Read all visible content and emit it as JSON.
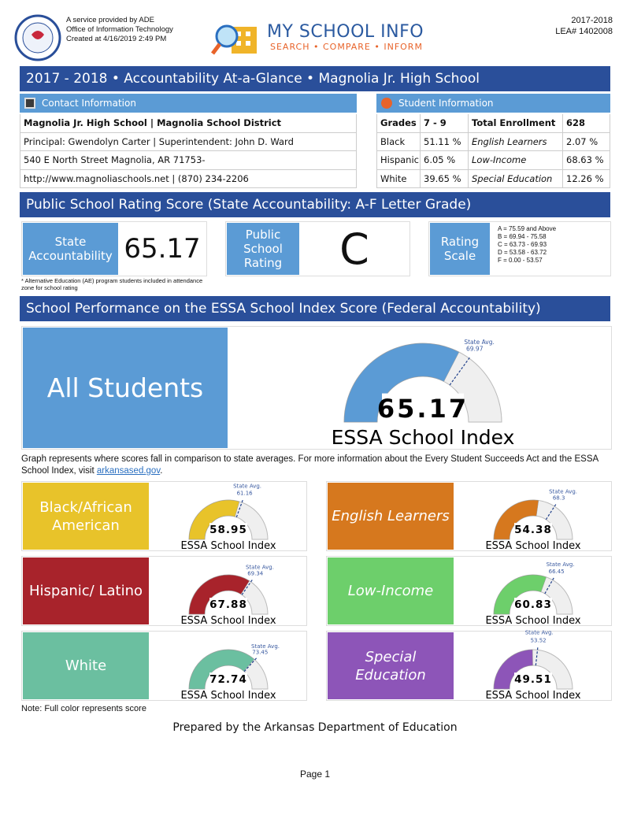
{
  "header": {
    "service_lines": [
      "A service provided by ADE",
      "Office of Information Technology",
      "Created at 4/16/2019 2:49 PM"
    ],
    "logo_title": "MY SCHOOL INFO",
    "logo_tagline": "SEARCH • COMPARE • INFORM",
    "year": "2017-2018",
    "lea": "LEA# 1402008"
  },
  "title": "2017 - 2018 • Accountability At-a-Glance • Magnolia Jr. High School",
  "contact": {
    "heading": "Contact Information",
    "rows": [
      "Magnolia Jr. High School | Magnolia School District",
      "Principal: Gwendolyn Carter | Superintendent: John D. Ward",
      "540 E North Street Magnolia, AR 71753-",
      "http://www.magnoliaschools.net | (870) 234-2206"
    ]
  },
  "student": {
    "heading": "Student Information",
    "rows": [
      [
        "Grades",
        "7 - 9",
        "Total Enrollment",
        "628"
      ],
      [
        "Black",
        "51.11 %",
        "English Learners",
        "2.07 %"
      ],
      [
        "Hispanic",
        "6.05 %",
        "Low-Income",
        "68.63 %"
      ],
      [
        "White",
        "39.65 %",
        "Special Education",
        "12.26 %"
      ]
    ]
  },
  "rating": {
    "heading": "Public School Rating Score (State Accountability: A-F Letter Grade)",
    "state_label": "State Accountability",
    "state_score": "65.17",
    "school_label": "Public School Rating",
    "grade": "C",
    "scale_label": "Rating Scale",
    "scale": [
      "A = 75.59 and Above",
      "B = 69.94 - 75.58",
      "C = 63.73 - 69.93",
      "D = 53.58 - 63.72",
      "F = 0.00 - 53.57"
    ],
    "note": "* Alternative Education (AE) program students included in attendance zone for school rating"
  },
  "essa": {
    "heading": "School Performance on the ESSA School Index Score (Federal Accountability)",
    "gauge_lim": [
      0,
      100
    ],
    "state_avg_label": "State Avg.",
    "index_label": "ESSA School Index",
    "all": {
      "name": "All Students",
      "color": "#5b9bd5",
      "value": 65.17,
      "state_avg": 69.97
    },
    "explanation": "Graph represents where scores fall in comparison to state averages. For more information about the Every Student Succeeds Act and the ESSA School Index, visit ",
    "link": "arkansased.gov",
    "after_link": ".",
    "groups": [
      {
        "name": "Black/African American",
        "color": "#e8c32a",
        "italic": false,
        "value": 58.95,
        "state_avg": 61.16
      },
      {
        "name": "English Learners",
        "color": "#d6781e",
        "italic": true,
        "value": 54.38,
        "state_avg": 68.3
      },
      {
        "name": "Hispanic/ Latino",
        "color": "#a8232b",
        "italic": false,
        "value": 67.88,
        "state_avg": 69.34
      },
      {
        "name": "Low-Income",
        "color": "#6dcf6b",
        "italic": true,
        "value": 60.83,
        "state_avg": 66.45
      },
      {
        "name": "White",
        "color": "#6bbfa0",
        "italic": false,
        "value": 72.74,
        "state_avg": 73.45
      },
      {
        "name": "Special Education",
        "color": "#8d55b8",
        "italic": true,
        "value": 49.51,
        "state_avg": 53.52
      }
    ],
    "note": "Note: Full color represents score"
  },
  "footer": {
    "prepared": "Prepared by the Arkansas Department of Education",
    "page": "Page 1"
  }
}
